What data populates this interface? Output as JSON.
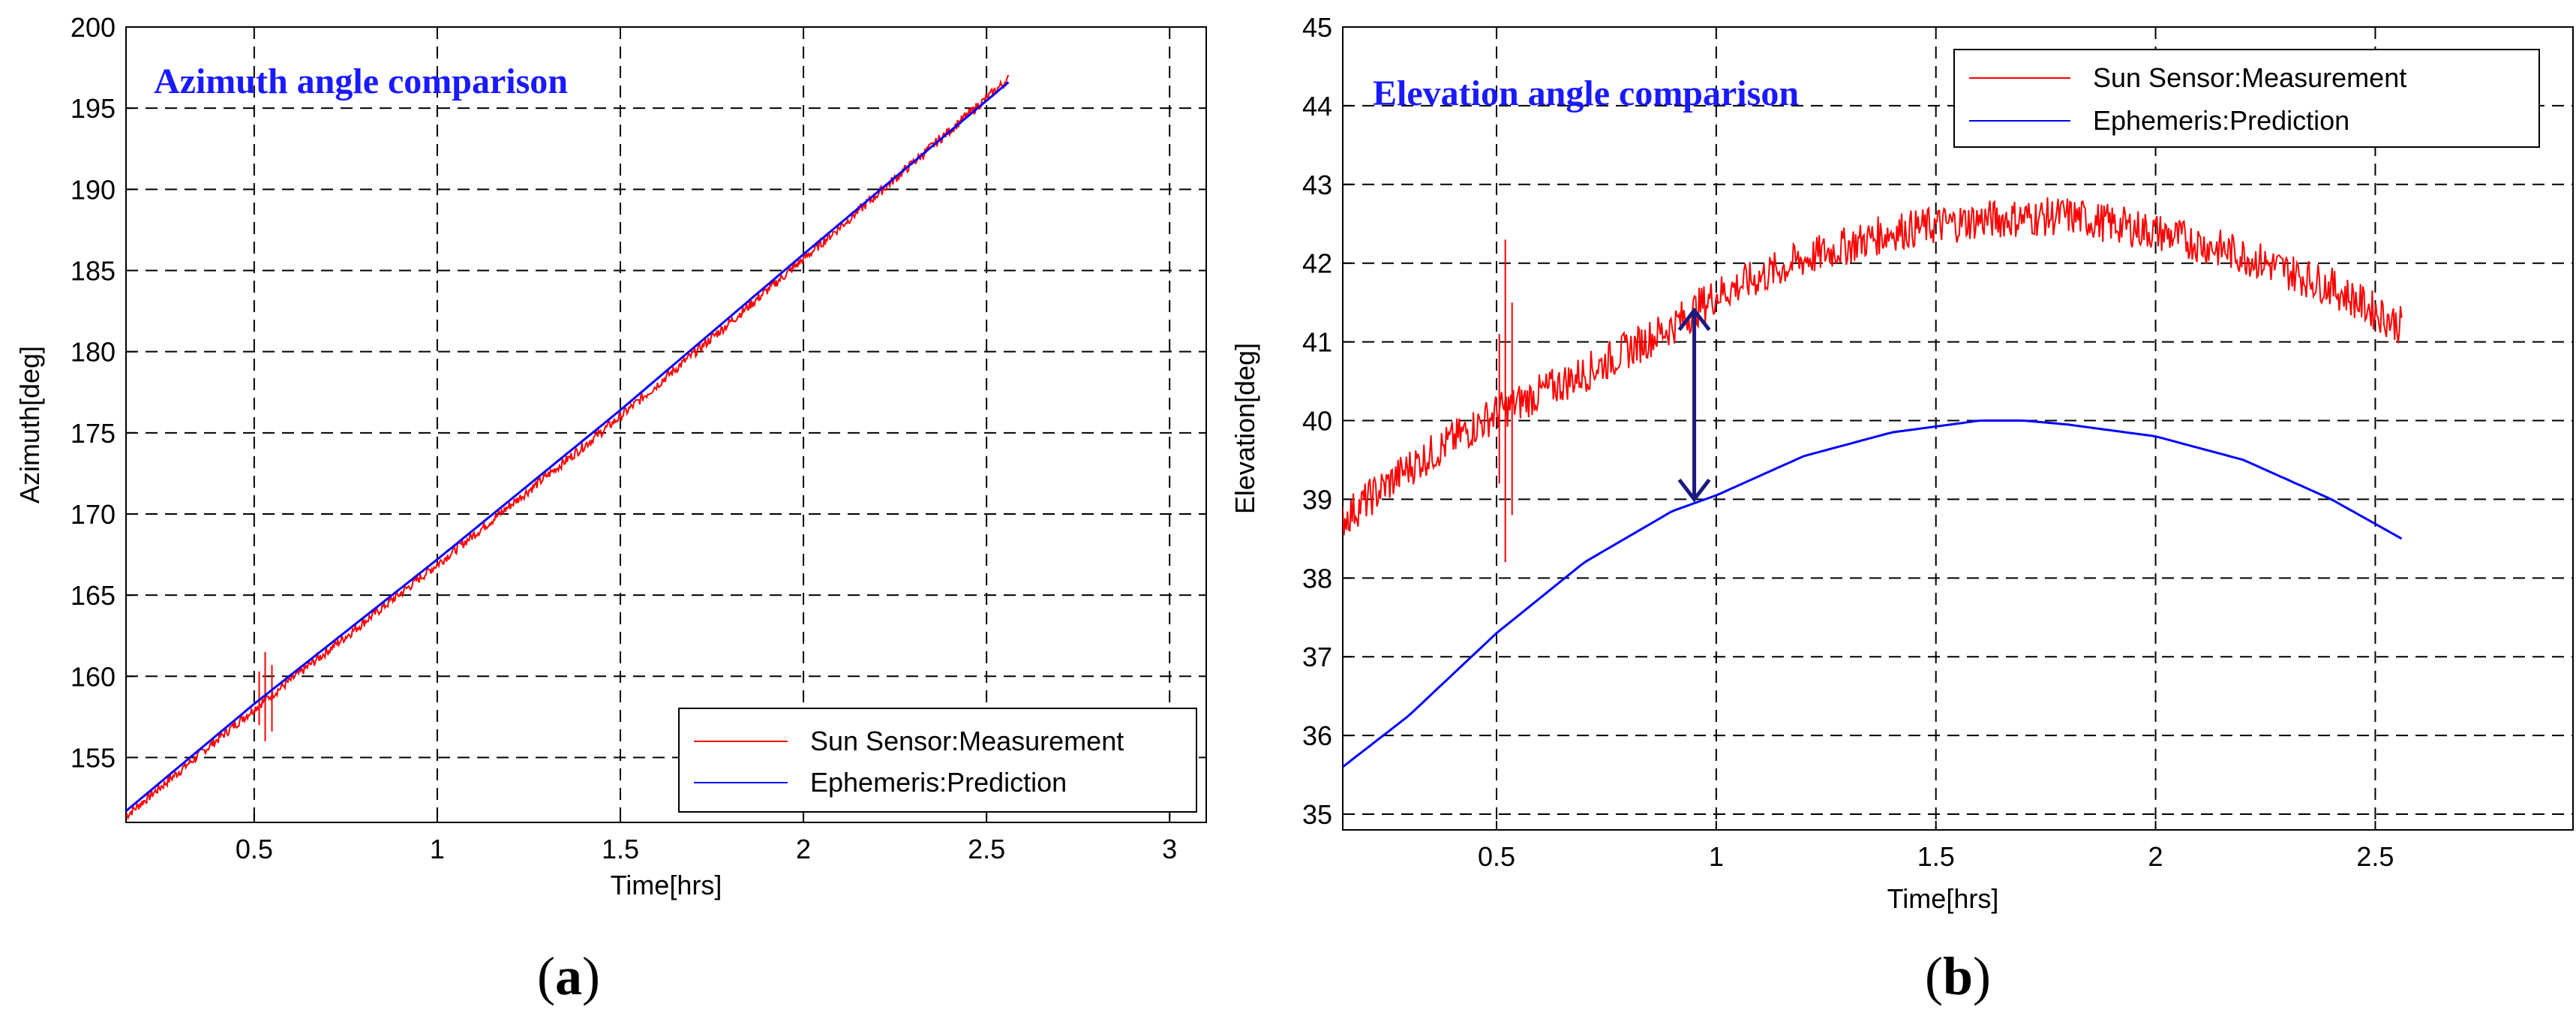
{
  "colors": {
    "measurement": "#ff0000",
    "prediction": "#0000ff",
    "title": "#1a1aff",
    "arrow": "#1a1a80",
    "grid": "#000000"
  },
  "chart_data": [
    {
      "id": "a",
      "type": "line",
      "caption_letter": "a",
      "title": "Azimuth angle comparison",
      "xlabel": "Time[hrs]",
      "ylabel": "Azimuth[deg]",
      "xlim": [
        0.15,
        3.1
      ],
      "ylim": [
        151,
        200
      ],
      "xticks": [
        0.5,
        1,
        1.5,
        2,
        2.5,
        3
      ],
      "yticks": [
        155,
        160,
        165,
        170,
        175,
        180,
        185,
        190,
        195,
        200
      ],
      "xtick_labels": [
        "0.5",
        "1",
        "1.5",
        "2",
        "2.5",
        "3"
      ],
      "ytick_labels": [
        "155",
        "160",
        "165",
        "170",
        "175",
        "180",
        "185",
        "190",
        "195",
        "200"
      ],
      "grid": true,
      "legend_position": "bottom-right",
      "series": [
        {
          "name": "Sun Sensor:Measurement",
          "color": "#ff0000",
          "x": [
            0.15,
            0.5,
            1.0,
            1.5,
            2.0,
            2.56
          ],
          "y": [
            151.4,
            158.0,
            166.9,
            176.0,
            185.7,
            196.8
          ],
          "noise_amplitude": 0.3,
          "spike": {
            "x": 0.53,
            "low": 156.0,
            "high": 161.5
          }
        },
        {
          "name": "Ephemeris:Prediction",
          "color": "#0000ff",
          "x": [
            0.15,
            0.5,
            1.0,
            1.5,
            2.0,
            2.56
          ],
          "y": [
            151.7,
            158.3,
            167.2,
            176.4,
            186.0,
            196.6
          ]
        }
      ]
    },
    {
      "id": "b",
      "type": "line",
      "caption_letter": "b",
      "title": "Elevation angle comparison",
      "xlabel": "Time[hrs]",
      "ylabel": "Elevation[deg]",
      "xlim": [
        0.15,
        2.95
      ],
      "ylim": [
        34.8,
        45
      ],
      "xticks": [
        0.5,
        1,
        1.5,
        2,
        2.5
      ],
      "yticks": [
        35,
        36,
        37,
        38,
        39,
        40,
        41,
        42,
        43,
        44,
        45
      ],
      "xtick_labels": [
        "0.5",
        "1",
        "1.5",
        "2",
        "2.5"
      ],
      "ytick_labels": [
        "35",
        "36",
        "37",
        "38",
        "39",
        "40",
        "41",
        "42",
        "43",
        "44",
        "45"
      ],
      "grid": true,
      "legend_position": "top-right",
      "series": [
        {
          "name": "Sun Sensor:Measurement",
          "color": "#ff0000",
          "x": [
            0.15,
            0.3,
            0.5,
            0.7,
            0.9,
            1.0,
            1.2,
            1.4,
            1.6,
            1.8,
            2.0,
            2.2,
            2.4,
            2.56
          ],
          "y": [
            38.75,
            39.4,
            40.1,
            40.6,
            41.2,
            41.6,
            42.05,
            42.4,
            42.55,
            42.6,
            42.4,
            42.1,
            41.7,
            41.2
          ],
          "noise_amplitude": 0.25,
          "spike": {
            "x": 0.52,
            "low": 38.2,
            "high": 42.3
          }
        },
        {
          "name": "Ephemeris:Prediction",
          "color": "#0000ff",
          "x": [
            0.15,
            0.3,
            0.5,
            0.7,
            0.9,
            1.0,
            1.2,
            1.4,
            1.6,
            1.7,
            1.8,
            2.0,
            2.2,
            2.4,
            2.56
          ],
          "y": [
            35.6,
            36.25,
            37.3,
            38.2,
            38.85,
            39.05,
            39.55,
            39.85,
            40.0,
            40.0,
            39.95,
            39.8,
            39.5,
            39.0,
            38.5
          ]
        }
      ],
      "annotation": {
        "type": "double-arrow",
        "x": 0.95,
        "y1": 39.0,
        "y2": 41.4
      }
    }
  ]
}
